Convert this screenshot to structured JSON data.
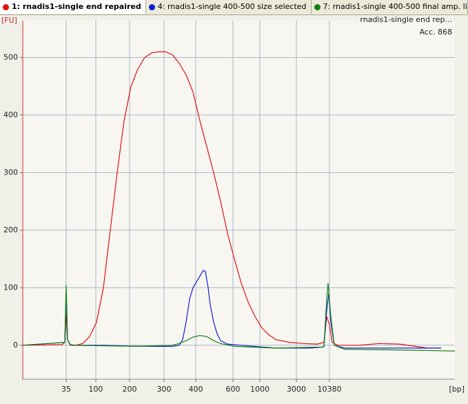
{
  "tabs": [
    "1: rnadis1-single end repaired",
    "4: rnadis1-single 400-500 size selected",
    "7: rnadis1-single 400-500 final amp. lib."
  ],
  "chart_data": {
    "type": "line",
    "annotations": [
      "rnadis1-single end rep...",
      "Acc. 868"
    ],
    "y_label": "[FU]",
    "x_label": "[bp]",
    "xlim": [
      3.3,
      66
    ],
    "ylim": [
      -59,
      564
    ],
    "grid": true,
    "xticks": [
      {
        "value": 9.6,
        "label": "35"
      },
      {
        "value": 13.9,
        "label": "100"
      },
      {
        "value": 18.8,
        "label": "200"
      },
      {
        "value": 23.8,
        "label": "300"
      },
      {
        "value": 28.4,
        "label": "400"
      },
      {
        "value": 33.8,
        "label": "600"
      },
      {
        "value": 37.7,
        "label": "1000"
      },
      {
        "value": 43.0,
        "label": "3000"
      },
      {
        "value": 47.8,
        "label": "10380"
      }
    ],
    "yticks": [
      0,
      100,
      200,
      300,
      400,
      500
    ],
    "series": [
      {
        "name": "1: rnadis1-single end repaired",
        "color": "#e01010",
        "x": [
          3.3,
          9.0,
          9.4,
          9.6,
          9.8,
          10.2,
          11.0,
          12.0,
          13.0,
          14.0,
          15.0,
          16.0,
          17.0,
          18.0,
          19.0,
          20.0,
          21.0,
          22.0,
          23.0,
          24.0,
          25.0,
          26.0,
          27.0,
          28.0,
          29.0,
          30.0,
          31.0,
          32.0,
          33.0,
          34.0,
          35.0,
          36.0,
          37.0,
          38.0,
          39.0,
          40.0,
          42.0,
          44.0,
          46.0,
          47.0,
          47.4,
          47.8,
          48.2,
          49.0,
          52.0,
          55.0,
          58.0,
          62.0,
          64.0
        ],
        "values": [
          0,
          1,
          5,
          55,
          10,
          1,
          0,
          3,
          15,
          40,
          100,
          200,
          300,
          390,
          450,
          480,
          500,
          508,
          510,
          510,
          505,
          490,
          470,
          440,
          390,
          345,
          300,
          250,
          195,
          150,
          108,
          75,
          50,
          30,
          18,
          10,
          5,
          3,
          2,
          5,
          50,
          35,
          5,
          0,
          0,
          3,
          2,
          -5,
          -5
        ]
      },
      {
        "name": "4: rnadis1-single 400-500 size selected",
        "color": "#1020d0",
        "x": [
          3.3,
          9.4,
          9.6,
          9.8,
          10.2,
          15.0,
          20.0,
          25.0,
          26.0,
          26.5,
          27.0,
          27.5,
          28.0,
          29.0,
          29.5,
          29.8,
          30.2,
          30.5,
          31.0,
          31.5,
          32.0,
          33.0,
          35.0,
          40.0,
          45.0,
          47.0,
          47.4,
          47.7,
          48.0,
          48.5,
          50.0,
          56.0,
          64.0
        ],
        "values": [
          0,
          5,
          90,
          10,
          0,
          0,
          -2,
          -2,
          0,
          10,
          40,
          80,
          100,
          120,
          130,
          128,
          100,
          70,
          40,
          20,
          8,
          2,
          0,
          -5,
          -5,
          -3,
          60,
          90,
          40,
          0,
          -5,
          -5,
          -5
        ]
      },
      {
        "name": "7: rnadis1-single 400-500 final amp. lib.",
        "color": "#108010",
        "x": [
          3.3,
          9.4,
          9.6,
          9.8,
          10.2,
          20.0,
          25.0,
          26.0,
          27.0,
          28.0,
          29.0,
          30.0,
          31.0,
          32.0,
          34.0,
          40.0,
          47.0,
          47.4,
          47.6,
          48.0,
          48.5,
          50.0,
          56.0,
          66.0
        ],
        "values": [
          0,
          5,
          105,
          10,
          0,
          -2,
          0,
          3,
          8,
          14,
          17,
          15,
          8,
          3,
          -2,
          -5,
          -3,
          80,
          108,
          50,
          0,
          -7,
          -8,
          -10
        ]
      }
    ]
  }
}
